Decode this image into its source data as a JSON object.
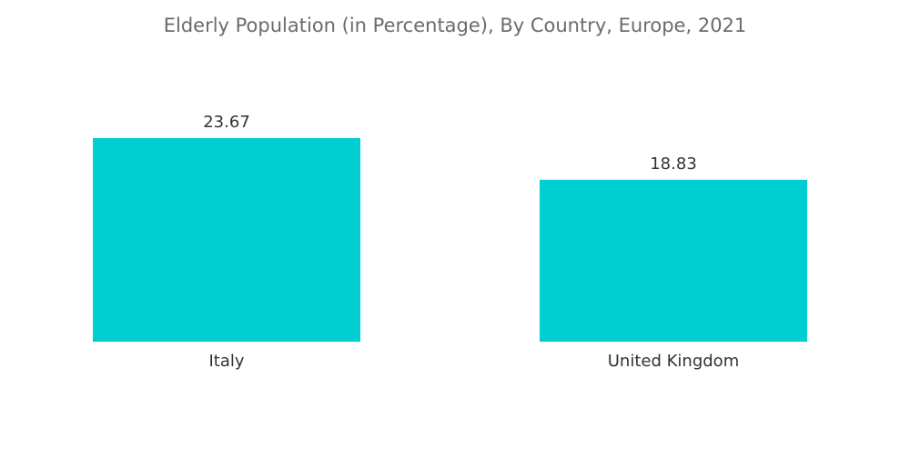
{
  "chart_data": {
    "type": "bar",
    "title": "Elderly Population (in Percentage), By Country, Europe, 2021",
    "categories": [
      "Italy",
      "United Kingdom"
    ],
    "values": [
      23.67,
      18.83
    ],
    "value_labels": [
      "23.67",
      "18.83"
    ],
    "xlabel": "",
    "ylabel": "",
    "ylim": [
      0,
      23.67
    ],
    "grid": false,
    "legend": "none",
    "bar_color": "#00CED1"
  }
}
